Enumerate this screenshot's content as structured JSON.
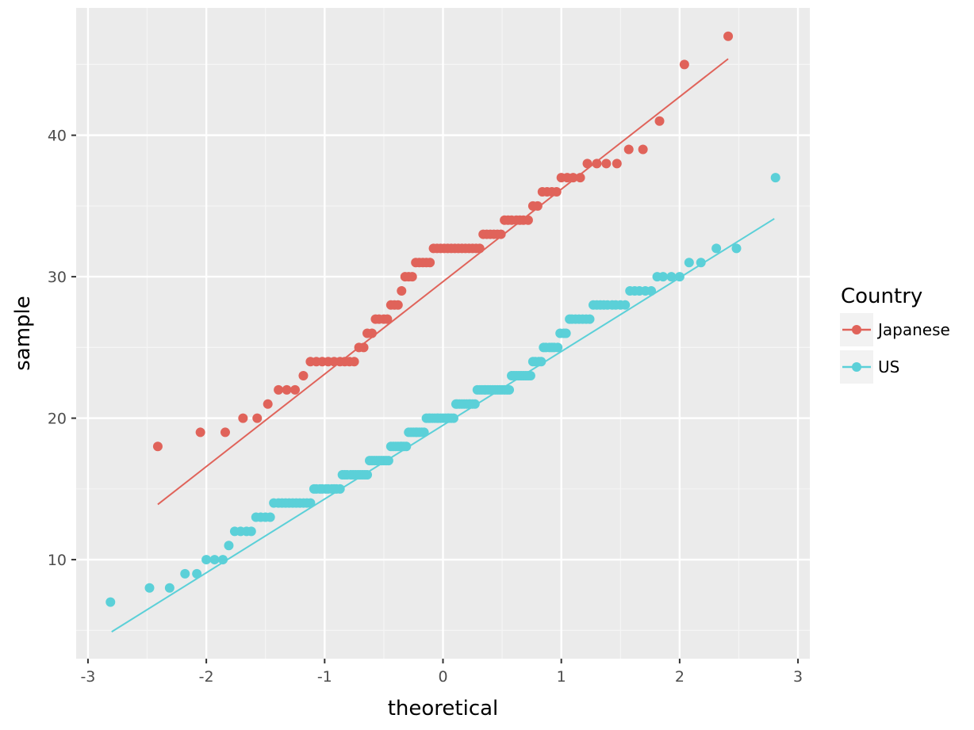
{
  "chart_data": {
    "type": "scatter",
    "xlabel": "theoretical",
    "ylabel": "sample",
    "xlim": [
      -3.1,
      3.1
    ],
    "ylim": [
      3,
      49
    ],
    "x_ticks": [
      -3,
      -2,
      -1,
      0,
      1,
      2,
      3
    ],
    "x_tick_labels": [
      "-3",
      "-2",
      "-1",
      "0",
      "1",
      "2",
      "3"
    ],
    "y_ticks": [
      10,
      20,
      30,
      40
    ],
    "y_tick_labels": [
      "10",
      "20",
      "30",
      "40"
    ],
    "grid": true,
    "legend": {
      "title": "Country",
      "position": "right"
    },
    "series": [
      {
        "name": "Japanese",
        "color": "#e0635a",
        "line": {
          "x": [
            -2.41,
            2.41
          ],
          "y": [
            13.9,
            45.4
          ]
        },
        "points": [
          [
            -2.41,
            18
          ],
          [
            -2.05,
            19
          ],
          [
            -1.84,
            19
          ],
          [
            -1.69,
            20
          ],
          [
            -1.57,
            20
          ],
          [
            -1.48,
            21
          ],
          [
            -1.39,
            22
          ],
          [
            -1.32,
            22
          ],
          [
            -1.25,
            22
          ],
          [
            -1.18,
            23
          ],
          [
            -1.12,
            24
          ],
          [
            -1.07,
            24
          ],
          [
            -1.02,
            24
          ],
          [
            -0.97,
            24
          ],
          [
            -0.92,
            24
          ],
          [
            -0.87,
            24
          ],
          [
            -0.83,
            24
          ],
          [
            -0.79,
            24
          ],
          [
            -0.75,
            24
          ],
          [
            -0.71,
            25
          ],
          [
            -0.67,
            25
          ],
          [
            -0.64,
            26
          ],
          [
            -0.6,
            26
          ],
          [
            -0.57,
            27
          ],
          [
            -0.54,
            27
          ],
          [
            -0.5,
            27
          ],
          [
            -0.47,
            27
          ],
          [
            -0.44,
            28
          ],
          [
            -0.41,
            28
          ],
          [
            -0.38,
            28
          ],
          [
            -0.35,
            29
          ],
          [
            -0.32,
            30
          ],
          [
            -0.29,
            30
          ],
          [
            -0.26,
            30
          ],
          [
            -0.23,
            31
          ],
          [
            -0.2,
            31
          ],
          [
            -0.17,
            31
          ],
          [
            -0.14,
            31
          ],
          [
            -0.11,
            31
          ],
          [
            -0.08,
            32
          ],
          [
            -0.05,
            32
          ],
          [
            -0.02,
            32
          ],
          [
            0.01,
            32
          ],
          [
            0.04,
            32
          ],
          [
            0.07,
            32
          ],
          [
            0.1,
            32
          ],
          [
            0.13,
            32
          ],
          [
            0.16,
            32
          ],
          [
            0.19,
            32
          ],
          [
            0.22,
            32
          ],
          [
            0.25,
            32
          ],
          [
            0.28,
            32
          ],
          [
            0.31,
            32
          ],
          [
            0.34,
            33
          ],
          [
            0.37,
            33
          ],
          [
            0.4,
            33
          ],
          [
            0.43,
            33
          ],
          [
            0.46,
            33
          ],
          [
            0.49,
            33
          ],
          [
            0.52,
            34
          ],
          [
            0.55,
            34
          ],
          [
            0.58,
            34
          ],
          [
            0.62,
            34
          ],
          [
            0.65,
            34
          ],
          [
            0.68,
            34
          ],
          [
            0.72,
            34
          ],
          [
            0.76,
            35
          ],
          [
            0.8,
            35
          ],
          [
            0.84,
            36
          ],
          [
            0.88,
            36
          ],
          [
            0.92,
            36
          ],
          [
            0.96,
            36
          ],
          [
            1.0,
            37
          ],
          [
            1.05,
            37
          ],
          [
            1.1,
            37
          ],
          [
            1.16,
            37
          ],
          [
            1.22,
            38
          ],
          [
            1.3,
            38
          ],
          [
            1.38,
            38
          ],
          [
            1.47,
            38
          ],
          [
            1.57,
            39
          ],
          [
            1.69,
            39
          ],
          [
            1.83,
            41
          ],
          [
            2.04,
            45
          ],
          [
            2.41,
            47
          ]
        ]
      },
      {
        "name": "US",
        "color": "#5bd0d8",
        "line": {
          "x": [
            -2.8,
            2.8
          ],
          "y": [
            4.9,
            34.1
          ]
        },
        "points": [
          [
            -2.81,
            7
          ],
          [
            -2.48,
            8
          ],
          [
            -2.31,
            8
          ],
          [
            -2.18,
            9
          ],
          [
            -2.08,
            9
          ],
          [
            -2.0,
            10
          ],
          [
            -1.93,
            10
          ],
          [
            -1.86,
            10
          ],
          [
            -1.81,
            11
          ],
          [
            -1.76,
            12
          ],
          [
            -1.71,
            12
          ],
          [
            -1.66,
            12
          ],
          [
            -1.62,
            12
          ],
          [
            -1.58,
            13
          ],
          [
            -1.54,
            13
          ],
          [
            -1.5,
            13
          ],
          [
            -1.46,
            13
          ],
          [
            -1.43,
            14
          ],
          [
            -1.39,
            14
          ],
          [
            -1.36,
            14
          ],
          [
            -1.33,
            14
          ],
          [
            -1.3,
            14
          ],
          [
            -1.27,
            14
          ],
          [
            -1.24,
            14
          ],
          [
            -1.21,
            14
          ],
          [
            -1.18,
            14
          ],
          [
            -1.15,
            14
          ],
          [
            -1.12,
            14
          ],
          [
            -1.09,
            15
          ],
          [
            -1.07,
            15
          ],
          [
            -1.04,
            15
          ],
          [
            -1.02,
            15
          ],
          [
            -0.99,
            15
          ],
          [
            -0.97,
            15
          ],
          [
            -0.94,
            15
          ],
          [
            -0.92,
            15
          ],
          [
            -0.9,
            15
          ],
          [
            -0.87,
            15
          ],
          [
            -0.85,
            16
          ],
          [
            -0.83,
            16
          ],
          [
            -0.81,
            16
          ],
          [
            -0.78,
            16
          ],
          [
            -0.76,
            16
          ],
          [
            -0.74,
            16
          ],
          [
            -0.72,
            16
          ],
          [
            -0.7,
            16
          ],
          [
            -0.68,
            16
          ],
          [
            -0.66,
            16
          ],
          [
            -0.64,
            16
          ],
          [
            -0.62,
            17
          ],
          [
            -0.6,
            17
          ],
          [
            -0.58,
            17
          ],
          [
            -0.56,
            17
          ],
          [
            -0.54,
            17
          ],
          [
            -0.52,
            17
          ],
          [
            -0.5,
            17
          ],
          [
            -0.48,
            17
          ],
          [
            -0.46,
            17
          ],
          [
            -0.44,
            18
          ],
          [
            -0.42,
            18
          ],
          [
            -0.4,
            18
          ],
          [
            -0.38,
            18
          ],
          [
            -0.36,
            18
          ],
          [
            -0.35,
            18
          ],
          [
            -0.33,
            18
          ],
          [
            -0.31,
            18
          ],
          [
            -0.29,
            19
          ],
          [
            -0.27,
            19
          ],
          [
            -0.25,
            19
          ],
          [
            -0.23,
            19
          ],
          [
            -0.22,
            19
          ],
          [
            -0.2,
            19
          ],
          [
            -0.18,
            19
          ],
          [
            -0.16,
            19
          ],
          [
            -0.14,
            20
          ],
          [
            -0.12,
            20
          ],
          [
            -0.11,
            20
          ],
          [
            -0.09,
            20
          ],
          [
            -0.07,
            20
          ],
          [
            -0.05,
            20
          ],
          [
            -0.04,
            20
          ],
          [
            -0.02,
            20
          ],
          [
            0.0,
            20
          ],
          [
            0.02,
            20
          ],
          [
            0.04,
            20
          ],
          [
            0.05,
            20
          ],
          [
            0.07,
            20
          ],
          [
            0.09,
            20
          ],
          [
            0.11,
            21
          ],
          [
            0.12,
            21
          ],
          [
            0.14,
            21
          ],
          [
            0.16,
            21
          ],
          [
            0.18,
            21
          ],
          [
            0.2,
            21
          ],
          [
            0.22,
            21
          ],
          [
            0.23,
            21
          ],
          [
            0.25,
            21
          ],
          [
            0.27,
            21
          ],
          [
            0.29,
            22
          ],
          [
            0.31,
            22
          ],
          [
            0.33,
            22
          ],
          [
            0.35,
            22
          ],
          [
            0.36,
            22
          ],
          [
            0.38,
            22
          ],
          [
            0.4,
            22
          ],
          [
            0.42,
            22
          ],
          [
            0.44,
            22
          ],
          [
            0.46,
            22
          ],
          [
            0.48,
            22
          ],
          [
            0.5,
            22
          ],
          [
            0.52,
            22
          ],
          [
            0.54,
            22
          ],
          [
            0.56,
            22
          ],
          [
            0.58,
            23
          ],
          [
            0.6,
            23
          ],
          [
            0.62,
            23
          ],
          [
            0.64,
            23
          ],
          [
            0.66,
            23
          ],
          [
            0.68,
            23
          ],
          [
            0.7,
            23
          ],
          [
            0.72,
            23
          ],
          [
            0.74,
            23
          ],
          [
            0.76,
            24
          ],
          [
            0.78,
            24
          ],
          [
            0.81,
            24
          ],
          [
            0.83,
            24
          ],
          [
            0.85,
            25
          ],
          [
            0.87,
            25
          ],
          [
            0.9,
            25
          ],
          [
            0.92,
            25
          ],
          [
            0.94,
            25
          ],
          [
            0.97,
            25
          ],
          [
            0.99,
            26
          ],
          [
            1.02,
            26
          ],
          [
            1.04,
            26
          ],
          [
            1.07,
            27
          ],
          [
            1.09,
            27
          ],
          [
            1.12,
            27
          ],
          [
            1.15,
            27
          ],
          [
            1.18,
            27
          ],
          [
            1.21,
            27
          ],
          [
            1.24,
            27
          ],
          [
            1.27,
            28
          ],
          [
            1.3,
            28
          ],
          [
            1.33,
            28
          ],
          [
            1.36,
            28
          ],
          [
            1.39,
            28
          ],
          [
            1.43,
            28
          ],
          [
            1.46,
            28
          ],
          [
            1.5,
            28
          ],
          [
            1.54,
            28
          ],
          [
            1.58,
            29
          ],
          [
            1.62,
            29
          ],
          [
            1.66,
            29
          ],
          [
            1.71,
            29
          ],
          [
            1.76,
            29
          ],
          [
            1.81,
            30
          ],
          [
            1.86,
            30
          ],
          [
            1.93,
            30
          ],
          [
            2.0,
            30
          ],
          [
            2.08,
            31
          ],
          [
            2.18,
            31
          ],
          [
            2.31,
            32
          ],
          [
            2.48,
            32
          ],
          [
            2.81,
            37
          ]
        ]
      }
    ]
  }
}
